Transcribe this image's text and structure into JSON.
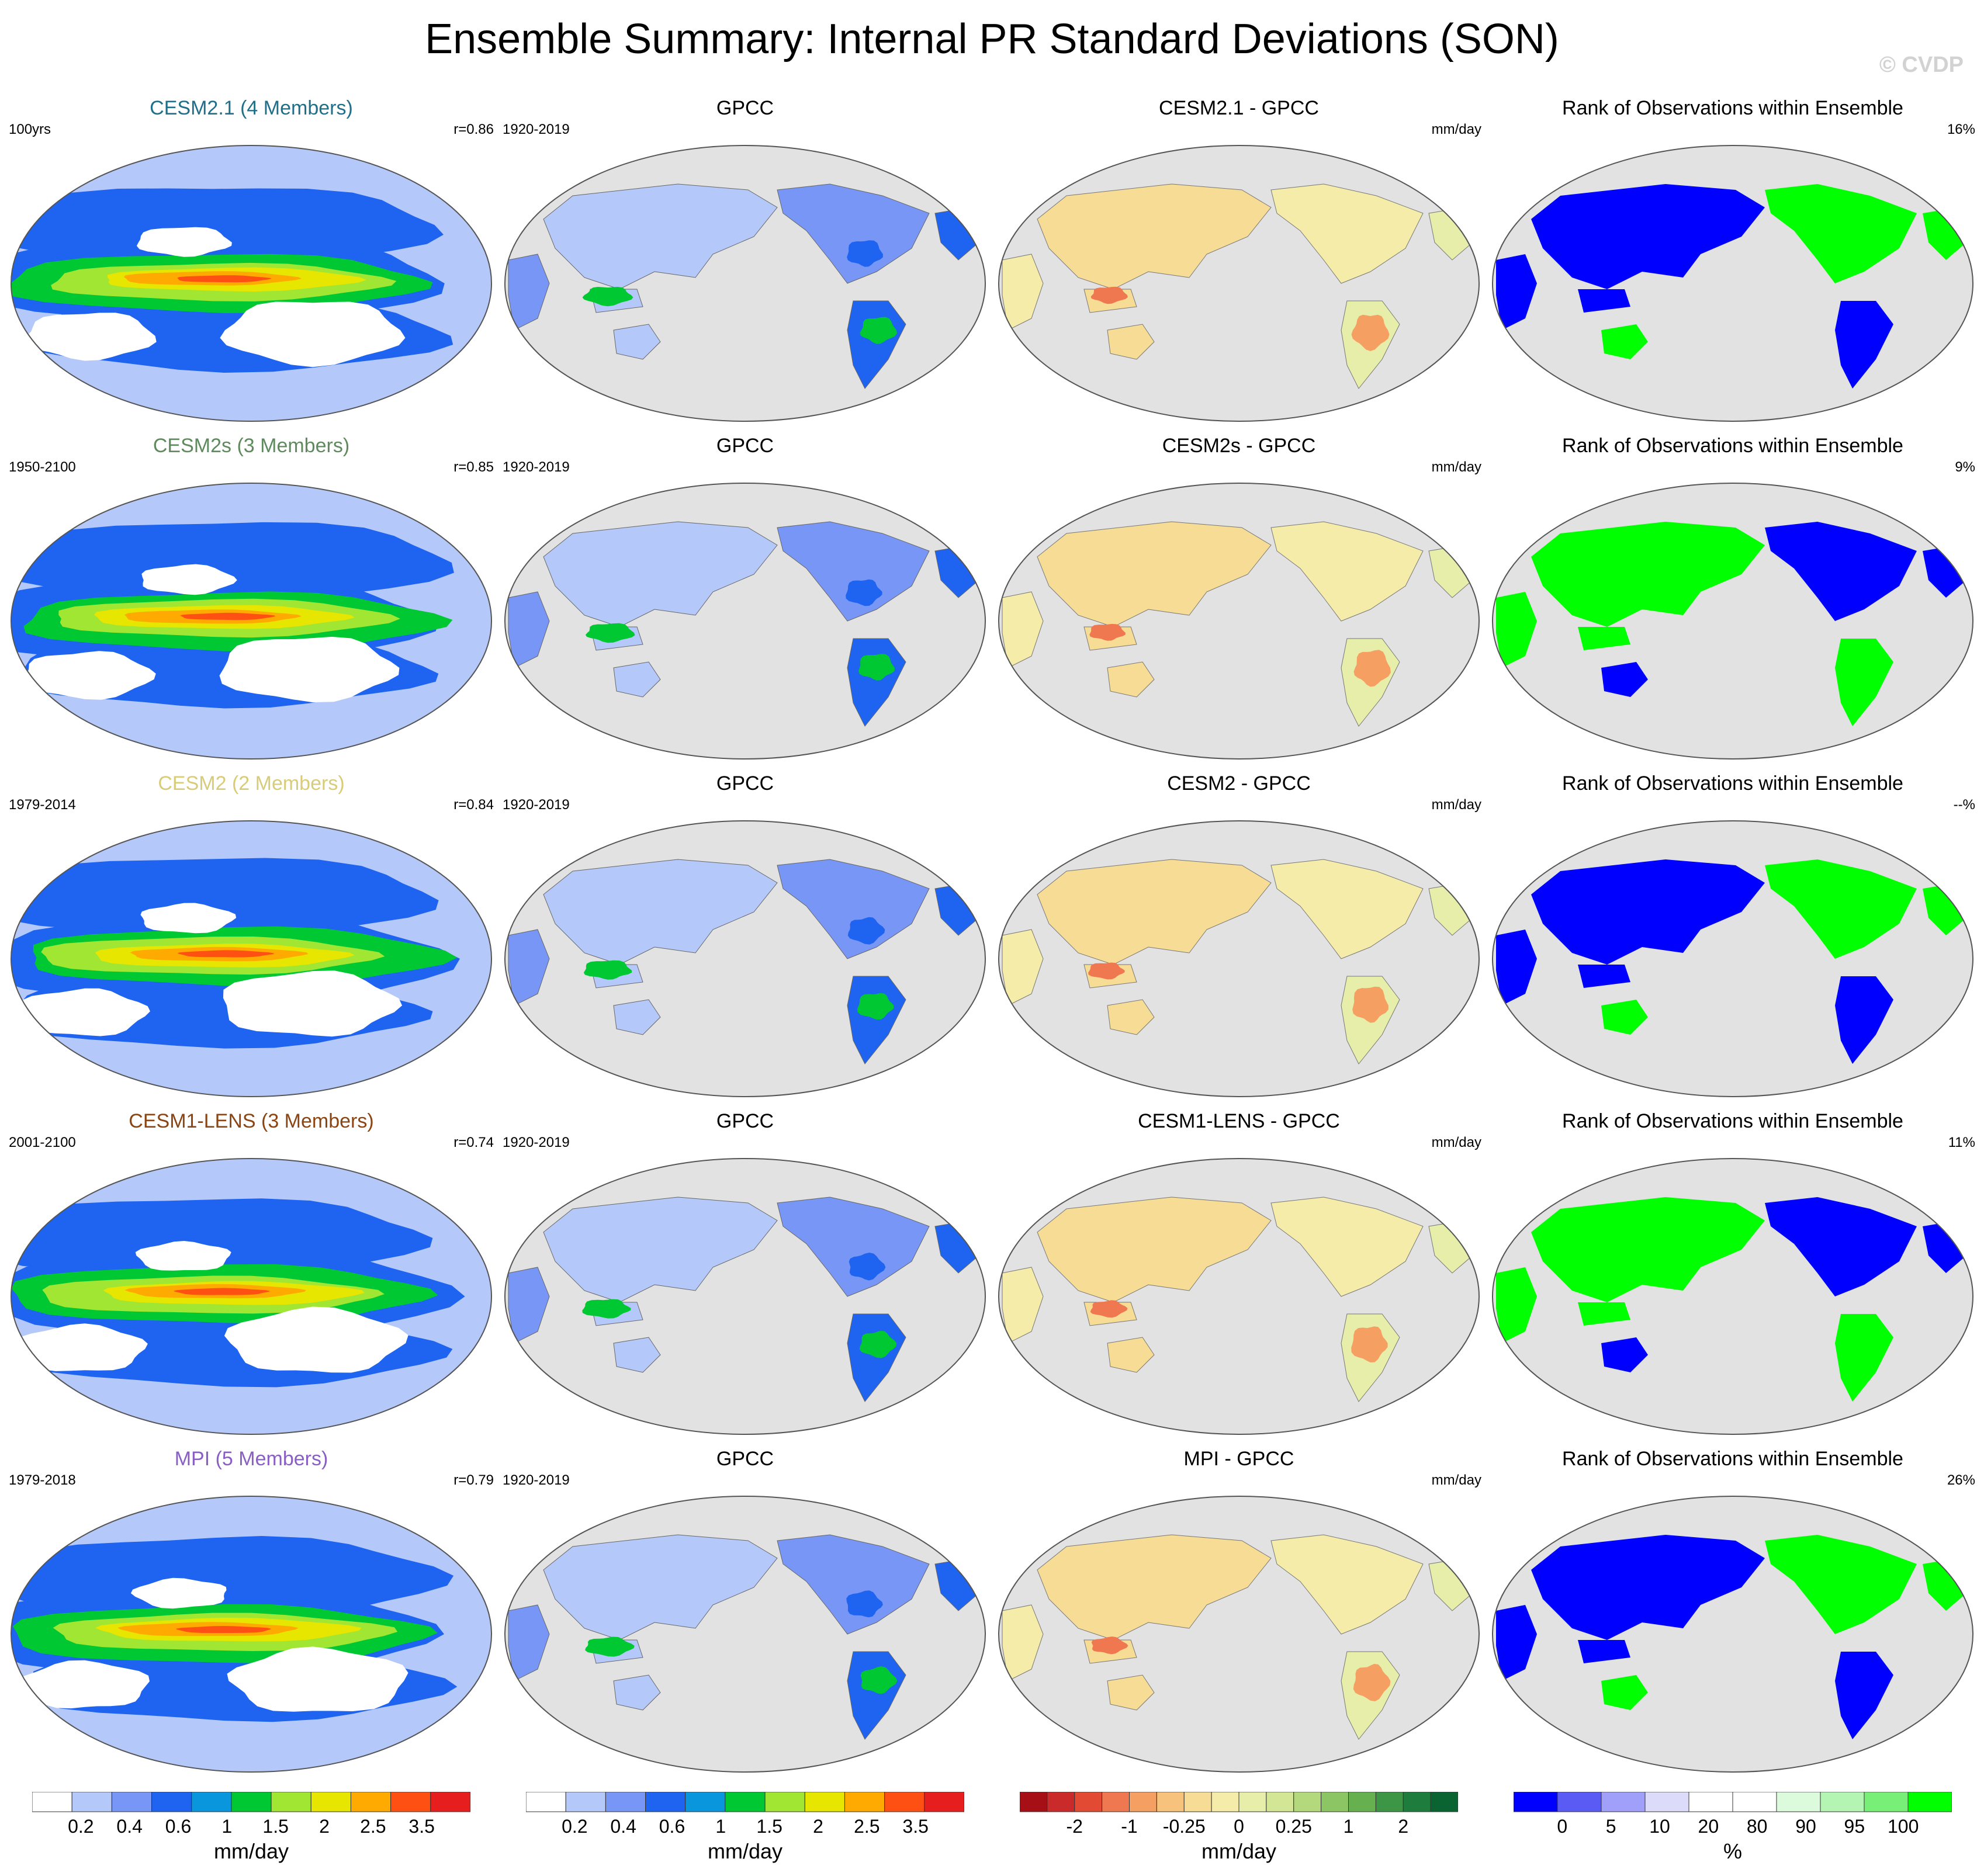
{
  "title": "Ensemble Summary: Internal PR Standard Deviations (SON)",
  "watermark": "© CVDP",
  "rows": [
    {
      "model": {
        "title": "CESM2.1 (4 Members)",
        "title_color": "#1f6f8b",
        "left": "100yrs",
        "right": "r=0.86"
      },
      "obs": {
        "title": "GPCC",
        "left": "1920-2019",
        "right": ""
      },
      "diff": {
        "title": "CESM2.1 - GPCC",
        "left": "",
        "right": "mm/day"
      },
      "rank": {
        "title": "Rank of Observations within Ensemble",
        "left": "",
        "right": "16%"
      }
    },
    {
      "model": {
        "title": "CESM2s (3 Members)",
        "title_color": "#5e8a5e",
        "left": "1950-2100",
        "right": "r=0.85"
      },
      "obs": {
        "title": "GPCC",
        "left": "1920-2019",
        "right": ""
      },
      "diff": {
        "title": "CESM2s - GPCC",
        "left": "",
        "right": "mm/day"
      },
      "rank": {
        "title": "Rank of Observations within Ensemble",
        "left": "",
        "right": "9%"
      }
    },
    {
      "model": {
        "title": "CESM2 (2 Members)",
        "title_color": "#d8cc78",
        "left": "1979-2014",
        "right": "r=0.84"
      },
      "obs": {
        "title": "GPCC",
        "left": "1920-2019",
        "right": ""
      },
      "diff": {
        "title": "CESM2 - GPCC",
        "left": "",
        "right": "mm/day"
      },
      "rank": {
        "title": "Rank of Observations within Ensemble",
        "left": "",
        "right": "--%"
      }
    },
    {
      "model": {
        "title": "CESM1-LENS (3 Members)",
        "title_color": "#8b4513",
        "left": "2001-2100",
        "right": "r=0.74"
      },
      "obs": {
        "title": "GPCC",
        "left": "1920-2019",
        "right": ""
      },
      "diff": {
        "title": "CESM1-LENS - GPCC",
        "left": "",
        "right": "mm/day"
      },
      "rank": {
        "title": "Rank of Observations within Ensemble",
        "left": "",
        "right": "11%"
      }
    },
    {
      "model": {
        "title": "MPI (5 Members)",
        "title_color": "#8a5fc4",
        "left": "1979-2018",
        "right": "r=0.79"
      },
      "obs": {
        "title": "GPCC",
        "left": "1920-2019",
        "right": ""
      },
      "diff": {
        "title": "MPI - GPCC",
        "left": "",
        "right": "mm/day"
      },
      "rank": {
        "title": "Rank of Observations within Ensemble",
        "left": "",
        "right": "26%"
      }
    }
  ],
  "colorbars": [
    {
      "units": "mm/day",
      "colors": [
        "#ffffff",
        "#b4c8fa",
        "#7896f5",
        "#1e64f0",
        "#0a96dc",
        "#00c832",
        "#a0e632",
        "#e6e600",
        "#ffaa00",
        "#ff5014",
        "#e61e1e"
      ],
      "labels": [
        "0.2",
        "0.4",
        "0.6",
        "1",
        "1.5",
        "2",
        "2.5",
        "3.5"
      ]
    },
    {
      "units": "mm/day",
      "colors": [
        "#ffffff",
        "#b4c8fa",
        "#7896f5",
        "#1e64f0",
        "#0a96dc",
        "#00c832",
        "#a0e632",
        "#e6e600",
        "#ffaa00",
        "#ff5014",
        "#e61e1e"
      ],
      "labels": [
        "0.2",
        "0.4",
        "0.6",
        "1",
        "1.5",
        "2",
        "2.5",
        "3.5"
      ]
    },
    {
      "units": "mm/day",
      "colors": [
        "#a50f15",
        "#cb2a2a",
        "#e34a33",
        "#f07850",
        "#f5a062",
        "#f7c27c",
        "#f6dc94",
        "#f5ecaa",
        "#e6eeaa",
        "#d2e696",
        "#b4d87c",
        "#8cc664",
        "#66b050",
        "#3c9646",
        "#1e7d3c",
        "#0a6432"
      ],
      "labels": [
        "-2",
        "-1",
        "-0.25",
        "0",
        "0.25",
        "1",
        "2"
      ]
    },
    {
      "units": "%",
      "colors": [
        "#0000ff",
        "#5a5af5",
        "#a0a0fa",
        "#dcdcfa",
        "#ffffff",
        "#ffffff",
        "#dcfadc",
        "#b4f5b4",
        "#78f078",
        "#00ff00"
      ],
      "labels": [
        "0",
        "5",
        "10",
        "20",
        "80",
        "90",
        "95",
        "100"
      ]
    }
  ],
  "chart_data": {
    "type": "heatmap",
    "title": "Ensemble Summary: Internal PR Standard Deviations (SON)",
    "projection": "Robinson (Pacific-centered)",
    "panels_per_row": [
      "model ensemble PR std dev",
      "GPCC observed PR std dev",
      "model minus GPCC",
      "rank of observations within ensemble"
    ],
    "pattern_correlations": [
      {
        "model": "CESM2.1 (4 Members)",
        "period": "100yrs",
        "r": 0.86,
        "rank_pct": 16
      },
      {
        "model": "CESM2s (3 Members)",
        "period": "1950-2100",
        "r": 0.85,
        "rank_pct": 9
      },
      {
        "model": "CESM2 (2 Members)",
        "period": "1979-2014",
        "r": 0.84,
        "rank_pct": null
      },
      {
        "model": "CESM1-LENS (3 Members)",
        "period": "2001-2100",
        "r": 0.74,
        "rank_pct": 11
      },
      {
        "model": "MPI (5 Members)",
        "period": "1979-2018",
        "r": 0.79,
        "rank_pct": 26
      }
    ],
    "observations_period": "1920-2019"
  }
}
